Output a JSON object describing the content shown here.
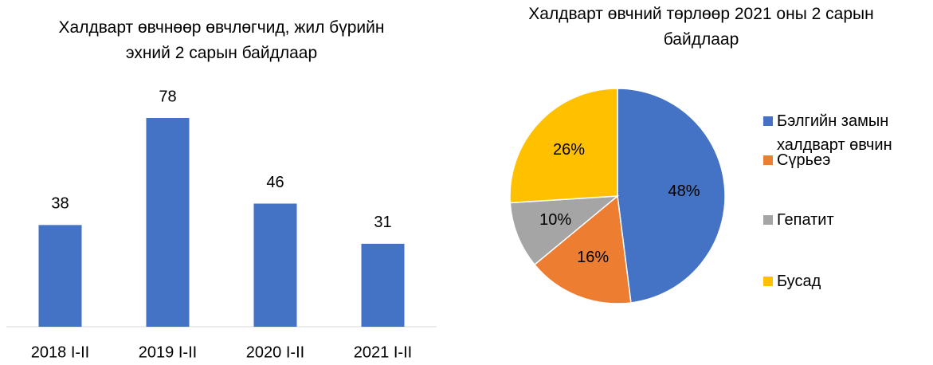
{
  "chart_data": [
    {
      "type": "bar",
      "title": "Халдварт өвчнөөр өвчлөгчид, жил бүрийн эхний 2 сарын байдлаар",
      "categories": [
        "2018 I-II",
        "2019 I-II",
        "2020 I-II",
        "2021 I-II"
      ],
      "values": [
        38,
        78,
        46,
        31
      ],
      "color": "#4472c4"
    },
    {
      "type": "pie",
      "title": "Халдварт өвчний төрлөөр 2021 оны 2 сарын байдлаар",
      "categories": [
        "Бэлгийн замын халдварт өвчин",
        "Сүрьеэ",
        "Гепатит",
        "Бусад"
      ],
      "values": [
        48,
        16,
        10,
        26
      ],
      "value_labels": [
        "48%",
        "16%",
        "10%",
        "26%"
      ],
      "colors": [
        "#4472c4",
        "#ed7d31",
        "#a5a5a5",
        "#ffc000"
      ],
      "legend": "right"
    }
  ]
}
